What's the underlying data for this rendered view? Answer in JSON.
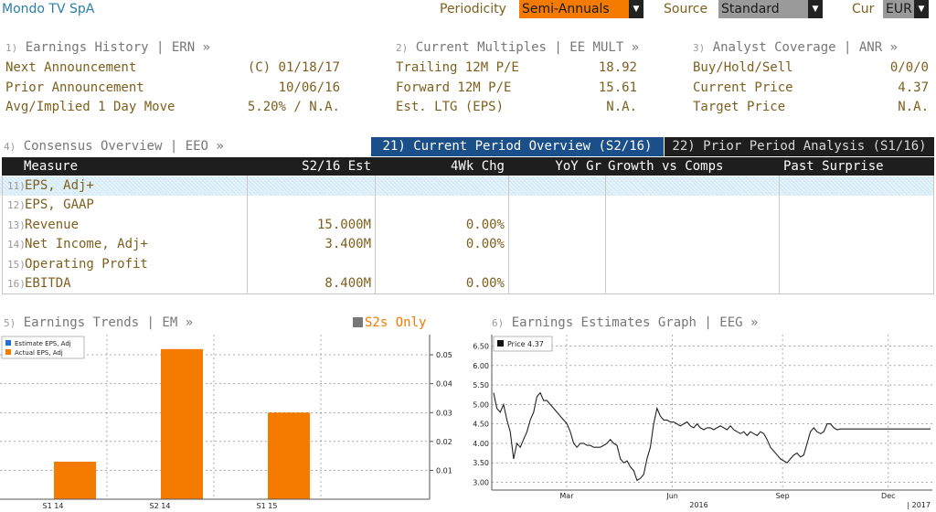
{
  "header": {
    "title": "Mondo TV SpA",
    "periodicity_label": "Periodicity",
    "periodicity_value": "Semi-Annuals",
    "source_label": "Source",
    "source_value": "Standard",
    "cur_label": "Cur",
    "cur_value": "EUR"
  },
  "earnings_history": {
    "index": "1)",
    "title": "Earnings History | ERN »",
    "rows": [
      {
        "label": "Next Announcement",
        "value": "(C)  01/18/17"
      },
      {
        "label": "Prior Announcement",
        "value": "10/06/16"
      },
      {
        "label": "Avg/Implied 1 Day Move",
        "value": "5.20% / N.A."
      }
    ]
  },
  "current_multiples": {
    "index": "2)",
    "title": "Current Multiples | EE MULT »",
    "rows": [
      {
        "label": "Trailing 12M P/E",
        "value": "18.92"
      },
      {
        "label": "Forward 12M P/E",
        "value": "15.61"
      },
      {
        "label": "Est. LTG (EPS)",
        "value": "N.A."
      }
    ]
  },
  "analyst_coverage": {
    "index": "3)",
    "title": "Analyst Coverage | ANR »",
    "rows": [
      {
        "label": "Buy/Hold/Sell",
        "value": "0/0/0"
      },
      {
        "label": "Current Price",
        "value": "4.37"
      },
      {
        "label": "Target Price",
        "value": "N.A."
      }
    ]
  },
  "consensus": {
    "index": "4)",
    "title": "Consensus Overview | EEO »",
    "tab_current": "21) Current Period Overview (S2/16)",
    "tab_prior": "22) Prior Period Analysis (S1/16)",
    "columns": [
      "Measure",
      "S2/16 Est",
      "4Wk Chg",
      "YoY Gr",
      "Growth vs Comps",
      "Past Surprise"
    ],
    "rows": [
      {
        "idx": "11)",
        "measure": "EPS, Adj+",
        "est": "",
        "chg": ""
      },
      {
        "idx": "12)",
        "measure": "EPS, GAAP",
        "est": "",
        "chg": ""
      },
      {
        "idx": "13)",
        "measure": "Revenue",
        "est": "15.000M",
        "chg": "0.00%"
      },
      {
        "idx": "14)",
        "measure": "Net Income, Adj+",
        "est": "3.400M",
        "chg": "0.00%"
      },
      {
        "idx": "15)",
        "measure": "Operating Profit",
        "est": "",
        "chg": ""
      },
      {
        "idx": "16)",
        "measure": "EBITDA",
        "est": "8.400M",
        "chg": "0.00%"
      }
    ]
  },
  "earnings_trends": {
    "index": "5)",
    "title": "Earnings Trends | EM »",
    "filter_label": "S2s Only",
    "legend": [
      "Estimate EPS, Adj",
      "Actual EPS, Adj"
    ]
  },
  "earnings_graph": {
    "index": "6)",
    "title": "Earnings Estimates Graph | EEG »",
    "legend": "Price  4.37"
  },
  "colors": {
    "accent_orange": "#f47a00",
    "tab_blue": "#1a4f8a",
    "header_bar": "#1e1e1e",
    "estimate_blue": "#1f6fd6"
  },
  "chart_data": [
    {
      "type": "bar",
      "categories": [
        "S1 14",
        "S2 14",
        "S1 15"
      ],
      "series": [
        {
          "name": "Estimate EPS, Adj",
          "values": [
            null,
            null,
            null
          ]
        },
        {
          "name": "Actual EPS, Adj",
          "values": [
            0.013,
            0.052,
            0.03
          ]
        }
      ],
      "yticks": [
        "0.01",
        "0.02",
        "0.03",
        "0.04",
        "0.05"
      ],
      "ylim": [
        0,
        0.057
      ],
      "legend_position": "top-left",
      "grid": true
    },
    {
      "type": "line",
      "series": [
        {
          "name": "Price",
          "last": 4.37,
          "x": [
            0,
            2,
            4,
            6,
            8,
            10,
            12,
            14,
            16,
            18,
            20,
            22,
            24,
            26,
            28,
            30,
            32,
            34,
            36,
            38,
            40,
            42,
            44,
            46,
            48,
            50,
            52,
            54,
            56,
            58,
            60,
            62,
            64,
            66,
            68,
            70,
            72,
            74,
            76,
            78,
            80,
            82,
            84,
            86,
            88,
            90,
            92,
            94,
            96,
            98,
            100,
            102,
            104,
            106,
            108,
            110,
            112,
            114,
            116,
            118,
            120,
            122,
            124,
            126,
            128,
            130,
            132,
            134,
            136,
            138,
            140,
            142,
            144,
            146,
            148,
            150,
            152,
            154,
            156,
            158,
            160,
            162,
            164,
            166,
            168,
            170,
            172,
            174,
            176,
            178,
            180,
            182,
            184,
            186,
            188,
            190,
            192,
            194,
            196,
            198,
            200,
            202,
            204,
            206,
            208,
            210,
            212,
            214,
            216,
            218,
            220,
            222,
            224,
            226,
            228,
            230,
            232,
            234,
            236,
            238,
            240,
            242,
            244,
            246,
            248,
            250,
            252,
            254,
            256,
            258,
            260,
            262
          ],
          "values": [
            5.3,
            4.9,
            4.8,
            5.0,
            4.6,
            4.3,
            3.6,
            4.0,
            3.9,
            4.1,
            4.3,
            4.6,
            4.8,
            5.2,
            5.3,
            5.1,
            5.1,
            5.0,
            4.9,
            4.8,
            4.7,
            4.6,
            4.5,
            4.3,
            4.0,
            3.9,
            4.0,
            4.0,
            3.95,
            3.95,
            3.9,
            3.9,
            3.9,
            3.95,
            4.0,
            4.1,
            4.0,
            3.95,
            3.6,
            3.5,
            3.55,
            3.4,
            3.3,
            3.05,
            3.1,
            3.2,
            3.6,
            3.9,
            4.5,
            4.9,
            4.7,
            4.6,
            4.6,
            4.55,
            4.55,
            4.5,
            4.45,
            4.5,
            4.55,
            4.45,
            4.4,
            4.5,
            4.4,
            4.35,
            4.4,
            4.4,
            4.35,
            4.4,
            4.45,
            4.4,
            4.35,
            4.45,
            4.35,
            4.3,
            4.25,
            4.3,
            4.2,
            4.3,
            4.25,
            4.2,
            4.3,
            4.25,
            4.1,
            3.9,
            3.8,
            3.7,
            3.6,
            3.55,
            3.5,
            3.6,
            3.7,
            3.75,
            3.65,
            3.7,
            4.0,
            4.3,
            4.4,
            4.3,
            4.25,
            4.3,
            4.5,
            4.5,
            4.4,
            4.35,
            4.37,
            4.37,
            4.37,
            4.37,
            4.37,
            4.37,
            4.37,
            4.37,
            4.37,
            4.37,
            4.37,
            4.37,
            4.37,
            4.37,
            4.37,
            4.37,
            4.37,
            4.37,
            4.37,
            4.37,
            4.37,
            4.37,
            4.37,
            4.37,
            4.37,
            4.37,
            4.37,
            4.37
          ]
        }
      ],
      "yticks": [
        "3.00",
        "3.50",
        "4.00",
        "4.50",
        "5.00",
        "5.50",
        "6.00",
        "6.50"
      ],
      "ylim": [
        2.8,
        6.7
      ],
      "xticks": [
        "Mar",
        "Jun",
        "Sep",
        "Dec"
      ],
      "xsub": [
        "2016",
        "2017"
      ],
      "legend_position": "top-left",
      "grid": true
    }
  ]
}
